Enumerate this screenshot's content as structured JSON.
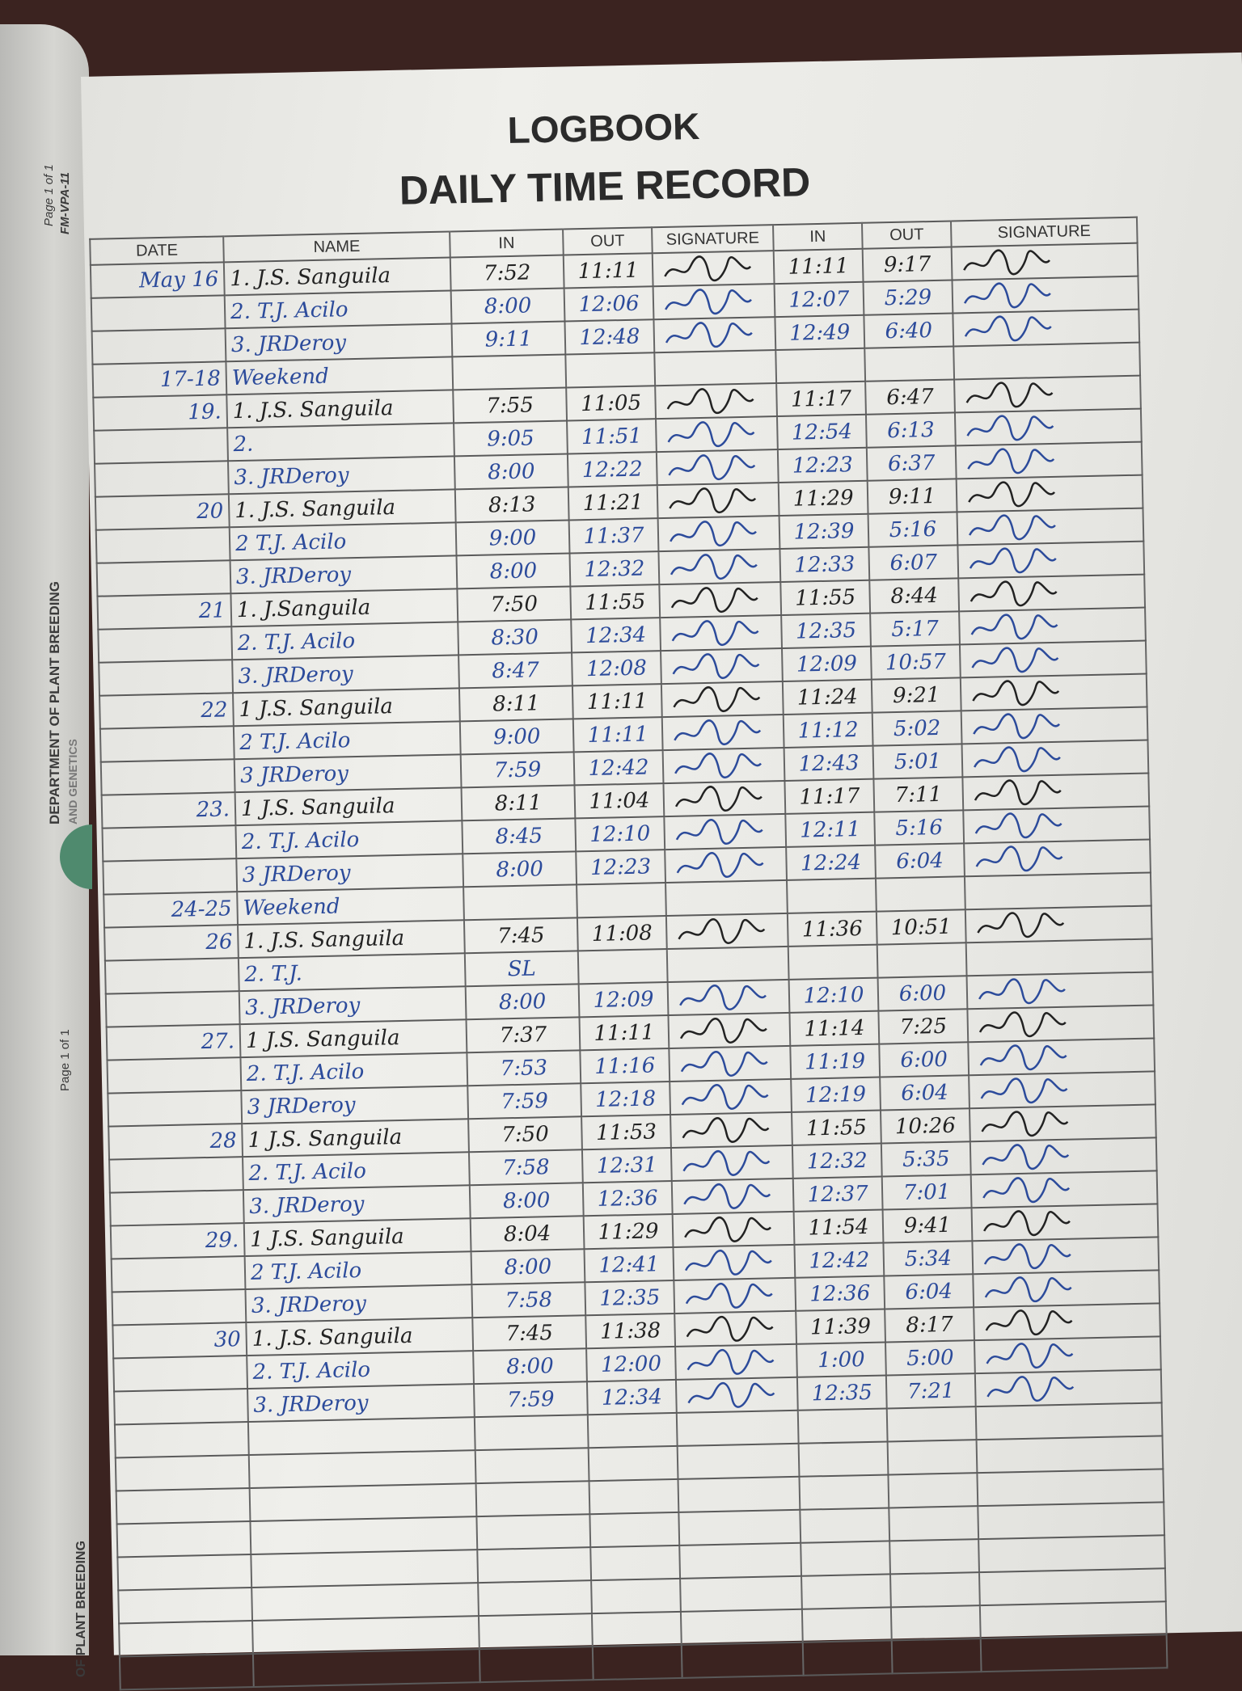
{
  "margin": {
    "page_label": "Page 1 of 1",
    "form_code": "FM-VPA-11",
    "department": "DEPARTMENT OF PLANT BREEDING",
    "department_line2": "AND GENETICS",
    "page_label_lower": "Page 1 of 1",
    "department_lower": "OF PLANT BREEDING"
  },
  "header": {
    "title": "LOGBOOK",
    "subtitle": "DAILY TIME RECORD"
  },
  "columns": [
    "DATE",
    "NAME",
    "IN",
    "OUT",
    "SIGNATURE",
    "IN",
    "OUT",
    "SIGNATURE"
  ],
  "colors": {
    "blue_ink": "#2c4b9b",
    "black_ink": "#222222",
    "paper": "#ebebe7"
  },
  "rows": [
    {
      "date": "May 16",
      "name": "1. J.S. Sanguila",
      "in_am": "7:52",
      "out_am": "11:11",
      "in_pm": "11:11",
      "out_pm": "9:17",
      "ink": "black",
      "signed": true
    },
    {
      "date": "",
      "name": "2. T.J. Acilo",
      "in_am": "8:00",
      "out_am": "12:06",
      "in_pm": "12:07",
      "out_pm": "5:29",
      "ink": "blue",
      "signed": true
    },
    {
      "date": "",
      "name": "3. JRDeroy",
      "in_am": "9:11",
      "out_am": "12:48",
      "in_pm": "12:49",
      "out_pm": "6:40",
      "ink": "blue",
      "signed": true
    },
    {
      "date": "17-18",
      "name": "Weekend",
      "in_am": "",
      "out_am": "",
      "in_pm": "",
      "out_pm": "",
      "ink": "blue",
      "signed": false
    },
    {
      "date": "19.",
      "name": "1. J.S. Sanguila",
      "in_am": "7:55",
      "out_am": "11:05",
      "in_pm": "11:17",
      "out_pm": "6:47",
      "ink": "black",
      "signed": true
    },
    {
      "date": "",
      "name": "2.",
      "in_am": "9:05",
      "out_am": "11:51",
      "in_pm": "12:54",
      "out_pm": "6:13",
      "ink": "blue",
      "signed": true
    },
    {
      "date": "",
      "name": "3. JRDeroy",
      "in_am": "8:00",
      "out_am": "12:22",
      "in_pm": "12:23",
      "out_pm": "6:37",
      "ink": "blue",
      "signed": true
    },
    {
      "date": "20",
      "name": "1. J.S. Sanguila",
      "in_am": "8:13",
      "out_am": "11:21",
      "in_pm": "11:29",
      "out_pm": "9:11",
      "ink": "black",
      "signed": true
    },
    {
      "date": "",
      "name": "2 T.J. Acilo",
      "in_am": "9:00",
      "out_am": "11:37",
      "in_pm": "12:39",
      "out_pm": "5:16",
      "ink": "blue",
      "signed": true
    },
    {
      "date": "",
      "name": "3. JRDeroy",
      "in_am": "8:00",
      "out_am": "12:32",
      "in_pm": "12:33",
      "out_pm": "6:07",
      "ink": "blue",
      "signed": true
    },
    {
      "date": "21",
      "name": "1. J.Sanguila",
      "in_am": "7:50",
      "out_am": "11:55",
      "in_pm": "11:55",
      "out_pm": "8:44",
      "ink": "black",
      "signed": true
    },
    {
      "date": "",
      "name": "2. T.J. Acilo",
      "in_am": "8:30",
      "out_am": "12:34",
      "in_pm": "12:35",
      "out_pm": "5:17",
      "ink": "blue",
      "signed": true
    },
    {
      "date": "",
      "name": "3. JRDeroy",
      "in_am": "8:47",
      "out_am": "12:08",
      "in_pm": "12:09",
      "out_pm": "10:57",
      "ink": "blue",
      "signed": true
    },
    {
      "date": "22",
      "name": "1 J.S. Sanguila",
      "in_am": "8:11",
      "out_am": "11:11",
      "in_pm": "11:24",
      "out_pm": "9:21",
      "ink": "black",
      "signed": true
    },
    {
      "date": "",
      "name": "2 T.J. Acilo",
      "in_am": "9:00",
      "out_am": "11:11",
      "in_pm": "11:12",
      "out_pm": "5:02",
      "ink": "blue",
      "signed": true
    },
    {
      "date": "",
      "name": "3 JRDeroy",
      "in_am": "7:59",
      "out_am": "12:42",
      "in_pm": "12:43",
      "out_pm": "5:01",
      "ink": "blue",
      "signed": true
    },
    {
      "date": "23.",
      "name": "1 J.S. Sanguila",
      "in_am": "8:11",
      "out_am": "11:04",
      "in_pm": "11:17",
      "out_pm": "7:11",
      "ink": "black",
      "signed": true
    },
    {
      "date": "",
      "name": "2. T.J. Acilo",
      "in_am": "8:45",
      "out_am": "12:10",
      "in_pm": "12:11",
      "out_pm": "5:16",
      "ink": "blue",
      "signed": true
    },
    {
      "date": "",
      "name": "3 JRDeroy",
      "in_am": "8:00",
      "out_am": "12:23",
      "in_pm": "12:24",
      "out_pm": "6:04",
      "ink": "blue",
      "signed": true
    },
    {
      "date": "24-25",
      "name": "Weekend",
      "in_am": "",
      "out_am": "",
      "in_pm": "",
      "out_pm": "",
      "ink": "blue",
      "signed": false
    },
    {
      "date": "26",
      "name": "1. J.S. Sanguila",
      "in_am": "7:45",
      "out_am": "11:08",
      "in_pm": "11:36",
      "out_pm": "10:51",
      "ink": "black",
      "signed": true
    },
    {
      "date": "",
      "name": "2. T.J.",
      "in_am": "SL",
      "out_am": "",
      "in_pm": "",
      "out_pm": "",
      "ink": "blue",
      "signed": false
    },
    {
      "date": "",
      "name": "3. JRDeroy",
      "in_am": "8:00",
      "out_am": "12:09",
      "in_pm": "12:10",
      "out_pm": "6:00",
      "ink": "blue",
      "signed": true
    },
    {
      "date": "27.",
      "name": "1 J.S. Sanguila",
      "in_am": "7:37",
      "out_am": "11:11",
      "in_pm": "11:14",
      "out_pm": "7:25",
      "ink": "black",
      "signed": true
    },
    {
      "date": "",
      "name": "2. T.J. Acilo",
      "in_am": "7:53",
      "out_am": "11:16",
      "in_pm": "11:19",
      "out_pm": "6:00",
      "ink": "blue",
      "signed": true
    },
    {
      "date": "",
      "name": "3 JRDeroy",
      "in_am": "7:59",
      "out_am": "12:18",
      "in_pm": "12:19",
      "out_pm": "6:04",
      "ink": "blue",
      "signed": true
    },
    {
      "date": "28",
      "name": "1 J.S. Sanguila",
      "in_am": "7:50",
      "out_am": "11:53",
      "in_pm": "11:55",
      "out_pm": "10:26",
      "ink": "black",
      "signed": true
    },
    {
      "date": "",
      "name": "2. T.J. Acilo",
      "in_am": "7:58",
      "out_am": "12:31",
      "in_pm": "12:32",
      "out_pm": "5:35",
      "ink": "blue",
      "signed": true
    },
    {
      "date": "",
      "name": "3. JRDeroy",
      "in_am": "8:00",
      "out_am": "12:36",
      "in_pm": "12:37",
      "out_pm": "7:01",
      "ink": "blue",
      "signed": true
    },
    {
      "date": "29.",
      "name": "1 J.S. Sanguila",
      "in_am": "8:04",
      "out_am": "11:29",
      "in_pm": "11:54",
      "out_pm": "9:41",
      "ink": "black",
      "signed": true
    },
    {
      "date": "",
      "name": "2 T.J. Acilo",
      "in_am": "8:00",
      "out_am": "12:41",
      "in_pm": "12:42",
      "out_pm": "5:34",
      "ink": "blue",
      "signed": true
    },
    {
      "date": "",
      "name": "3. JRDeroy",
      "in_am": "7:58",
      "out_am": "12:35",
      "in_pm": "12:36",
      "out_pm": "6:04",
      "ink": "blue",
      "signed": true
    },
    {
      "date": "30",
      "name": "1. J.S. Sanguila",
      "in_am": "7:45",
      "out_am": "11:38",
      "in_pm": "11:39",
      "out_pm": "8:17",
      "ink": "black",
      "signed": true
    },
    {
      "date": "",
      "name": "2. T.J. Acilo",
      "in_am": "8:00",
      "out_am": "12:00",
      "in_pm": "1:00",
      "out_pm": "5:00",
      "ink": "blue",
      "signed": true
    },
    {
      "date": "",
      "name": "3. JRDeroy",
      "in_am": "7:59",
      "out_am": "12:34",
      "in_pm": "12:35",
      "out_pm": "7:21",
      "ink": "blue",
      "signed": true
    }
  ]
}
